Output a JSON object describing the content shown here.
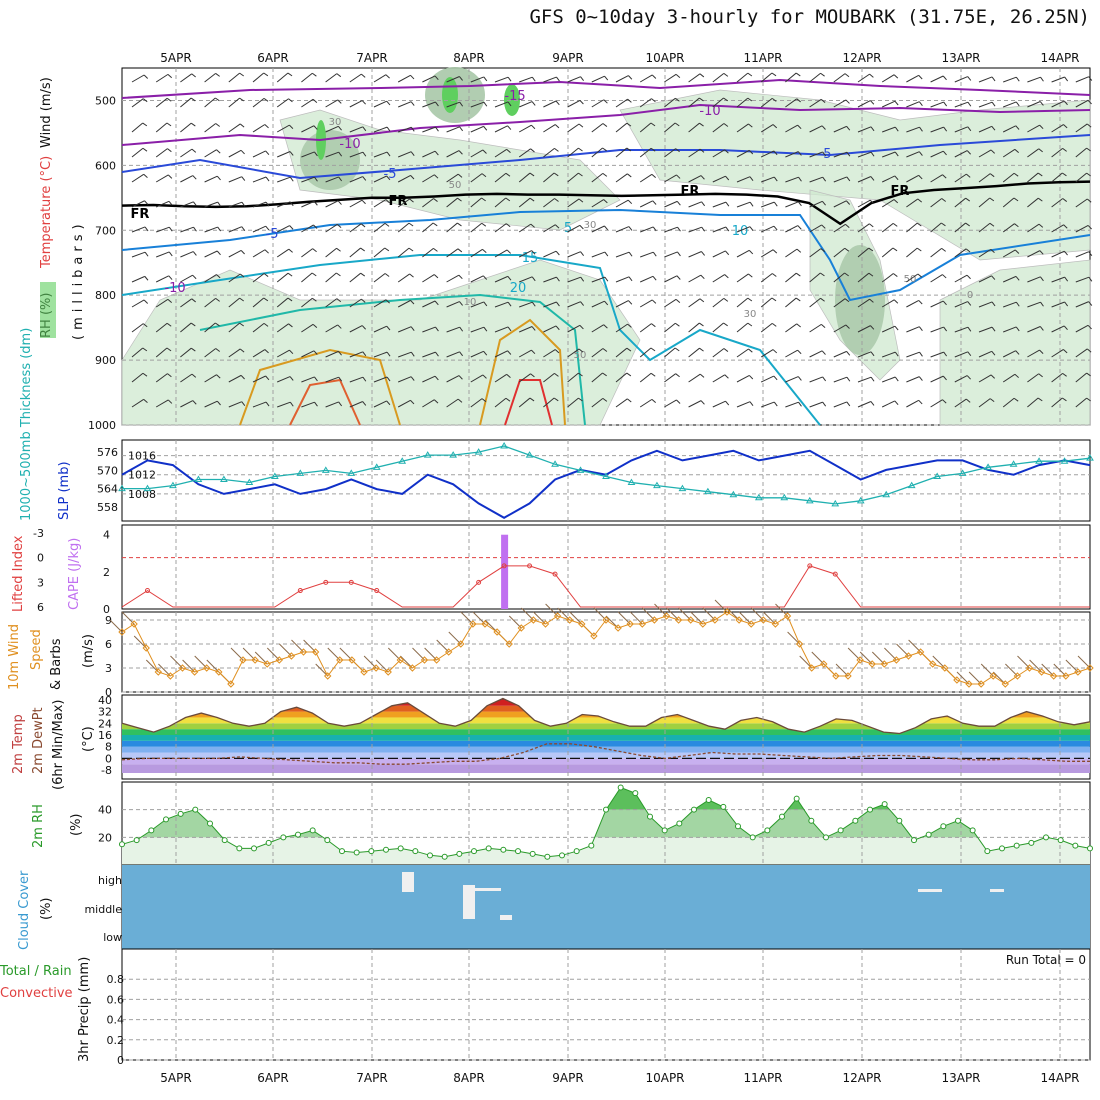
{
  "title": "GFS 0~10day 3-hourly for MOUBARK (31.75E, 26.25N)",
  "dates": [
    "5APR",
    "6APR",
    "7APR",
    "8APR",
    "9APR",
    "10APR",
    "11APR",
    "12APR",
    "13APR",
    "14APR"
  ],
  "colors": {
    "grid": "#a0a0a0",
    "rh_fill": "#cfe8cf",
    "rh_fill_mid": "#a9c8a9",
    "rh_fill_high": "#5fcf5f",
    "slp": "#1030c8",
    "thickness": "#20b0b0",
    "lifted_index": "#e04040",
    "cape": "#c070f0",
    "wind10m": "#e09020",
    "dewpoint": "#8a4a30",
    "rh2m": "#2a9a2a",
    "rh2m_fill": "#bfe3bf",
    "cloud": "#6aaed6",
    "frz": "#000000"
  },
  "panel_labels": {
    "upper": {
      "rh": "RH (%)",
      "temp": "Temperature (°C)",
      "wind": "Wind (m/s)",
      "pressure": "(millibars)"
    },
    "slp": {
      "thickness": "1000~500mb Thickness (dm)",
      "slp": "SLP (mb)"
    },
    "stability": {
      "li": "Lifted Index",
      "cape": "CAPE (J/kg)"
    },
    "wind10m": {
      "title": "10m Wind",
      "speed": "Speed",
      "barbs": "& Barbs",
      "unit": "(m/s)"
    },
    "temp2m": {
      "title": "2m Temp",
      "dew": "2m DewPt",
      "minmax": "(6hr Min/Max)",
      "unit": "(°C)"
    },
    "rh2m": {
      "title": "2m RH",
      "unit": "(%)"
    },
    "cloud": {
      "title": "Cloud Cover",
      "unit": "(%)",
      "levels": [
        "high",
        "middle",
        "low"
      ]
    },
    "precip": {
      "title": "3hr Precip (mm)",
      "total": "Total / Rain",
      "conv": "Convective",
      "run_total": "Run Total = 0"
    }
  },
  "chart_data": [
    {
      "type": "contour-profile",
      "name": "upper-air cross section",
      "ylabel": "millibars",
      "yticks": [
        500,
        600,
        700,
        800,
        900,
        1000
      ],
      "ylim": [
        1000,
        450
      ],
      "temperature_labels": [
        "-15",
        "-10",
        "-10",
        "-5",
        "-5",
        "FR",
        "FR",
        "FR",
        "FR",
        "-5",
        "5",
        "10",
        "15",
        "20",
        "-10"
      ],
      "rh_labels": [
        "30",
        "50",
        "30",
        "10",
        "50",
        "50",
        "30",
        "0"
      ],
      "freezing_level_mb": [
        662,
        661,
        663,
        664,
        663,
        660,
        656,
        653,
        650,
        650,
        648,
        645,
        644,
        645,
        645,
        646,
        647,
        646,
        645,
        644,
        645,
        648,
        658,
        690,
        658,
        643,
        638,
        635,
        632,
        628,
        626,
        625
      ]
    },
    {
      "type": "line",
      "name": "SLP and thickness",
      "series": [
        {
          "name": "SLP (mb)",
          "axis": "right",
          "ticks": [
            1008,
            1012,
            1016
          ],
          "values": [
            1012,
            1015,
            1014,
            1010,
            1008,
            1009,
            1010,
            1008,
            1009,
            1011,
            1009,
            1008,
            1012,
            1010,
            1006,
            1003,
            1006,
            1011,
            1013,
            1012,
            1015,
            1017,
            1015,
            1016,
            1017,
            1015,
            1016,
            1017,
            1014,
            1011,
            1013,
            1014,
            1015,
            1015,
            1013,
            1012,
            1014,
            1015,
            1014
          ]
        },
        {
          "name": "1000~500mb Thickness (dm)",
          "axis": "left",
          "ticks": [
            558,
            564,
            570,
            576
          ],
          "values": [
            564,
            564,
            565,
            567,
            567,
            566,
            568,
            569,
            570,
            569,
            571,
            573,
            575,
            575,
            576,
            578,
            575,
            572,
            570,
            568,
            566,
            565,
            564,
            563,
            562,
            561,
            561,
            560,
            559,
            560,
            562,
            565,
            568,
            569,
            571,
            572,
            573,
            573,
            574
          ]
        }
      ]
    },
    {
      "type": "line",
      "name": "Lifted Index and CAPE",
      "li_ticks": [
        -3,
        0,
        3,
        6
      ],
      "cape_ticks": [
        0,
        2,
        4
      ],
      "li_values": [
        6,
        4,
        6,
        6,
        6,
        6,
        6,
        4,
        3,
        3,
        4,
        6,
        6,
        6,
        3,
        1,
        1,
        2,
        6,
        6,
        6,
        6,
        6,
        6,
        6,
        6,
        6,
        1,
        2,
        6,
        6,
        6,
        6,
        6,
        6,
        6,
        6,
        6,
        6
      ],
      "cape_values": [
        0,
        0,
        0,
        0,
        0,
        0,
        0,
        0,
        0,
        0,
        0,
        0,
        0,
        0,
        0,
        4,
        0,
        0,
        0,
        0,
        0,
        0,
        0,
        0,
        0,
        0,
        0,
        0,
        0,
        0,
        0,
        0,
        0,
        0,
        0,
        0,
        0,
        0,
        0
      ]
    },
    {
      "type": "line",
      "name": "10m wind speed",
      "ylabel": "(m/s)",
      "yticks": [
        0,
        3,
        6,
        9
      ],
      "ylim": [
        0,
        10
      ],
      "values": [
        7.5,
        8.5,
        5.5,
        2.5,
        2,
        3,
        2.5,
        3,
        2.5,
        1,
        4,
        4,
        3.5,
        4,
        4.5,
        5,
        5,
        2,
        4,
        4,
        2.5,
        3,
        2.5,
        4,
        3,
        4,
        4,
        5,
        6,
        8.5,
        8.5,
        7.5,
        6,
        8,
        9,
        8.5,
        9.5,
        9,
        8.5,
        7,
        9,
        8,
        8.5,
        8.5,
        9,
        9.5,
        9,
        9,
        8.5,
        9,
        10,
        9,
        8.5,
        9,
        8.5,
        9.5,
        6,
        3,
        3.5,
        2,
        2,
        4,
        3.5,
        3.5,
        4,
        4.5,
        5,
        3.5,
        3,
        1.5,
        1,
        1,
        2,
        1,
        2,
        3,
        2.5,
        2,
        2,
        2.5,
        3
      ]
    },
    {
      "type": "area",
      "name": "2m temperature and dewpoint",
      "ylabel": "(°C)",
      "yticks": [
        -8,
        0,
        8,
        16,
        24,
        32,
        40
      ],
      "ylim": [
        -10,
        42
      ],
      "temp_values": [
        24,
        21,
        18,
        22,
        28,
        31,
        28,
        24,
        22,
        24,
        32,
        35,
        31,
        24,
        22,
        24,
        30,
        36,
        38,
        31,
        24,
        22,
        26,
        36,
        41,
        36,
        26,
        22,
        24,
        30,
        29,
        25,
        22,
        22,
        28,
        30,
        26,
        22,
        20,
        26,
        28,
        25,
        20,
        18,
        22,
        27,
        26,
        22,
        18,
        17,
        21,
        27,
        29,
        24,
        22,
        22,
        28,
        32,
        29,
        25,
        23,
        25
      ],
      "dew_values": [
        -1,
        0,
        0,
        0,
        0,
        1,
        0,
        -1,
        -2,
        -3,
        -3,
        -4,
        -4,
        -3,
        -2,
        -2,
        0,
        4,
        10,
        10,
        8,
        5,
        2,
        0,
        2,
        4,
        3,
        3,
        2,
        1,
        0,
        1,
        2,
        2,
        1,
        0,
        -1,
        -1,
        0,
        -1,
        -2,
        -2
      ]
    },
    {
      "type": "area",
      "name": "2m RH",
      "ylabel": "(%)",
      "yticks": [
        20,
        40
      ],
      "ylim": [
        0,
        60
      ],
      "values": [
        15,
        18,
        25,
        33,
        37,
        40,
        30,
        18,
        12,
        12,
        16,
        20,
        22,
        25,
        18,
        10,
        9,
        10,
        11,
        12,
        10,
        7,
        6,
        8,
        10,
        12,
        11,
        10,
        8,
        6,
        7,
        10,
        14,
        40,
        56,
        52,
        35,
        25,
        30,
        40,
        47,
        42,
        28,
        20,
        25,
        35,
        48,
        32,
        20,
        25,
        32,
        40,
        44,
        32,
        18,
        22,
        28,
        32,
        25,
        10,
        12,
        14,
        16,
        20,
        18,
        14,
        12
      ]
    },
    {
      "type": "heatmap",
      "name": "Cloud cover",
      "levels": [
        "high",
        "middle",
        "low"
      ],
      "note": "nearly clear across period"
    },
    {
      "type": "bar",
      "name": "3hr precip",
      "ylabel": "3hr Precip (mm)",
      "yticks": [
        0,
        0.2,
        0.4,
        0.6,
        0.8
      ],
      "ylim": [
        0,
        1
      ],
      "values": []
    }
  ]
}
